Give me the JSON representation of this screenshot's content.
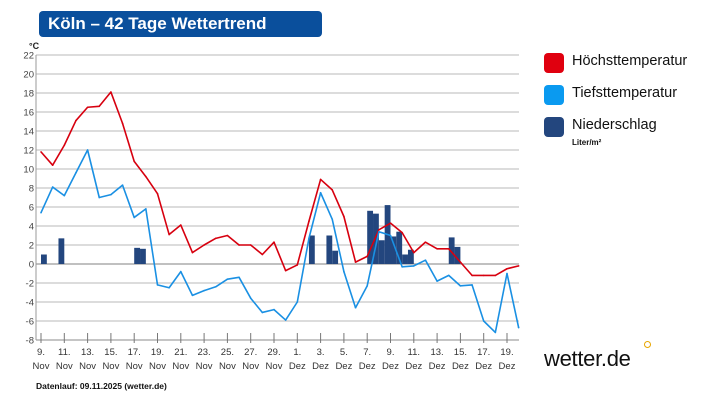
{
  "title": "Köln – 42 Tage Wettertrend",
  "footer": "Datenlauf: 09.11.2025 (wetter.de)",
  "logo": "wetter.de",
  "colors": {
    "high": "#d7000f",
    "low": "#1a90e3",
    "precip": "#23467e",
    "title_bg": "#0a4f9c"
  },
  "legend": [
    {
      "label": "Höchsttemperatur",
      "color": "#e0000f"
    },
    {
      "label": "Tiefsttemperatur",
      "color": "#0a9af0"
    },
    {
      "label": "Niederschlag",
      "color": "#23467e",
      "unit": "Liter/m²"
    }
  ],
  "chart_data": {
    "type": "line",
    "title": "Köln – 42 Tage Wettertrend",
    "ylabel": "°C",
    "ylim": [
      -8,
      22
    ],
    "yticks": [
      -8,
      -6,
      -4,
      -2,
      0,
      2,
      4,
      6,
      8,
      10,
      12,
      14,
      16,
      18,
      20,
      22
    ],
    "grid": true,
    "legend_position": "right",
    "x": [
      "2025-11-09",
      "2025-11-10",
      "2025-11-11",
      "2025-11-12",
      "2025-11-13",
      "2025-11-14",
      "2025-11-15",
      "2025-11-16",
      "2025-11-17",
      "2025-11-18",
      "2025-11-19",
      "2025-11-20",
      "2025-11-21",
      "2025-11-22",
      "2025-11-23",
      "2025-11-24",
      "2025-11-25",
      "2025-11-26",
      "2025-11-27",
      "2025-11-28",
      "2025-11-29",
      "2025-11-30",
      "2025-12-01",
      "2025-12-02",
      "2025-12-03",
      "2025-12-04",
      "2025-12-05",
      "2025-12-06",
      "2025-12-07",
      "2025-12-08",
      "2025-12-09",
      "2025-12-10",
      "2025-12-11",
      "2025-12-12",
      "2025-12-13",
      "2025-12-14",
      "2025-12-15",
      "2025-12-16",
      "2025-12-17",
      "2025-12-18",
      "2025-12-19",
      "2025-12-20"
    ],
    "xticks": [
      [
        "9.",
        "Nov"
      ],
      [
        "11.",
        "Nov"
      ],
      [
        "13.",
        "Nov"
      ],
      [
        "15.",
        "Nov"
      ],
      [
        "17.",
        "Nov"
      ],
      [
        "19.",
        "Nov"
      ],
      [
        "21.",
        "Nov"
      ],
      [
        "23.",
        "Nov"
      ],
      [
        "25.",
        "Nov"
      ],
      [
        "27.",
        "Nov"
      ],
      [
        "29.",
        "Nov"
      ],
      [
        "1.",
        "Dez"
      ],
      [
        "3.",
        "Dez"
      ],
      [
        "5.",
        "Dez"
      ],
      [
        "7.",
        "Dez"
      ],
      [
        "9.",
        "Dez"
      ],
      [
        "11.",
        "Dez"
      ],
      [
        "13.",
        "Dez"
      ],
      [
        "15.",
        "Dez"
      ],
      [
        "17.",
        "Dez"
      ],
      [
        "19.",
        "Dez"
      ]
    ],
    "series": [
      {
        "name": "Höchsttemperatur",
        "values": [
          11.8,
          10.4,
          12.5,
          15.1,
          16.5,
          16.6,
          18.1,
          14.8,
          10.8,
          9.2,
          7.4,
          3.1,
          4.1,
          1.2,
          2.0,
          2.7,
          3.0,
          2.0,
          2.0,
          1.0,
          2.3,
          -0.7,
          -0.1,
          4.5,
          8.9,
          7.8,
          5.0,
          0.2,
          0.8,
          3.6,
          4.3,
          3.3,
          1.2,
          2.3,
          1.6,
          1.6,
          0.2,
          -1.2,
          -1.2,
          -1.2,
          -0.5,
          -0.2
        ]
      },
      {
        "name": "Tiefsttemperatur",
        "values": [
          5.4,
          8.1,
          7.2,
          9.6,
          12.0,
          7.0,
          7.3,
          8.3,
          4.9,
          5.8,
          -2.2,
          -2.5,
          -0.8,
          -3.3,
          -2.8,
          -2.4,
          -1.6,
          -1.4,
          -3.6,
          -5.1,
          -4.8,
          -5.9,
          -4.0,
          2.7,
          7.5,
          4.7,
          -0.8,
          -4.6,
          -2.3,
          3.4,
          3.0,
          -0.3,
          -0.2,
          0.4,
          -1.8,
          -1.2,
          -2.3,
          -2.2,
          -6.0,
          -7.2,
          -1.0,
          -6.7
        ]
      }
    ],
    "precipitation": {
      "name": "Niederschlag",
      "unit": "Liter/m²",
      "interval": "12h",
      "bars": [
        {
          "date": "2025-11-09",
          "half": 1,
          "value": 1.0
        },
        {
          "date": "2025-11-10",
          "half": 2,
          "value": 2.7
        },
        {
          "date": "2025-11-17",
          "half": 1,
          "value": 1.7
        },
        {
          "date": "2025-11-17",
          "half": 2,
          "value": 1.6
        },
        {
          "date": "2025-12-02",
          "half": 1,
          "value": 3.0
        },
        {
          "date": "2025-12-03",
          "half": 2,
          "value": 3.0
        },
        {
          "date": "2025-12-04",
          "half": 1,
          "value": 1.4
        },
        {
          "date": "2025-12-07",
          "half": 1,
          "value": 5.6
        },
        {
          "date": "2025-12-07",
          "half": 2,
          "value": 5.3
        },
        {
          "date": "2025-12-08",
          "half": 1,
          "value": 2.5
        },
        {
          "date": "2025-12-08",
          "half": 2,
          "value": 6.2
        },
        {
          "date": "2025-12-09",
          "half": 1,
          "value": 2.9
        },
        {
          "date": "2025-12-09",
          "half": 2,
          "value": 3.4
        },
        {
          "date": "2025-12-10",
          "half": 1,
          "value": 1.0
        },
        {
          "date": "2025-12-10",
          "half": 2,
          "value": 1.5
        },
        {
          "date": "2025-12-14",
          "half": 1,
          "value": 2.8
        },
        {
          "date": "2025-12-14",
          "half": 2,
          "value": 1.8
        }
      ]
    }
  }
}
